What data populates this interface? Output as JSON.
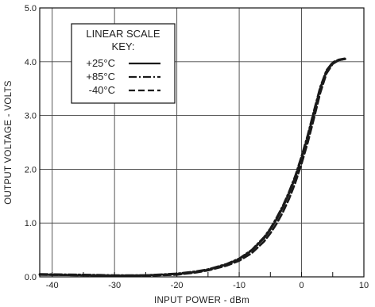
{
  "chart_data": {
    "type": "line",
    "xlabel": "INPUT POWER - dBm",
    "ylabel": "OUTPUT VOLTAGE - VOLTS",
    "xlim": [
      -42,
      10
    ],
    "ylim": [
      0,
      5
    ],
    "xticks": [
      -40,
      -30,
      -20,
      -10,
      0,
      10
    ],
    "xtick_labels": [
      "-40",
      "-30",
      "-20",
      "-10",
      "0",
      "10"
    ],
    "yticks": [
      0,
      1,
      2,
      3,
      4,
      5
    ],
    "ytick_labels": [
      "0.0",
      "1.0",
      "2.0",
      "3.0",
      "4.0",
      "5.0"
    ],
    "grid": true,
    "legend": {
      "title_line1": "LINEAR SCALE",
      "title_line2": "KEY:",
      "placement": "top-left"
    },
    "series": [
      {
        "name": "+25°C",
        "style": "solid",
        "x": [
          -42,
          -35,
          -30,
          -25,
          -20,
          -17,
          -15,
          -12,
          -10,
          -8,
          -6,
          -5,
          -4,
          -3,
          -2,
          -1,
          0,
          1,
          2,
          3,
          4,
          5,
          6,
          7
        ],
        "y": [
          0.04,
          0.03,
          0.02,
          0.03,
          0.05,
          0.09,
          0.13,
          0.23,
          0.33,
          0.49,
          0.72,
          0.88,
          1.07,
          1.29,
          1.55,
          1.85,
          2.2,
          2.6,
          3.05,
          3.5,
          3.82,
          3.98,
          4.03,
          4.05
        ]
      },
      {
        "name": "+85°C",
        "style": "dash-dot",
        "x": [
          -42,
          -35,
          -30,
          -25,
          -20,
          -17,
          -15,
          -12,
          -10,
          -8,
          -6,
          -5,
          -4,
          -3,
          -2,
          -1,
          0,
          1,
          2,
          3,
          4,
          5,
          6,
          7
        ],
        "y": [
          0.05,
          0.04,
          0.03,
          0.03,
          0.06,
          0.1,
          0.14,
          0.24,
          0.34,
          0.5,
          0.74,
          0.9,
          1.1,
          1.32,
          1.58,
          1.88,
          2.24,
          2.64,
          3.09,
          3.53,
          3.84,
          3.99,
          4.04,
          4.06
        ]
      },
      {
        "name": "-40°C",
        "style": "dashed",
        "x": [
          -42,
          -35,
          -30,
          -25,
          -20,
          -17,
          -15,
          -12,
          -10,
          -8,
          -6,
          -5,
          -4,
          -3,
          -2,
          -1,
          0,
          1,
          2,
          3,
          4,
          5,
          6,
          7
        ],
        "y": [
          0.04,
          0.03,
          0.02,
          0.02,
          0.04,
          0.08,
          0.12,
          0.21,
          0.3,
          0.44,
          0.66,
          0.81,
          0.99,
          1.2,
          1.45,
          1.75,
          2.1,
          2.5,
          2.95,
          3.42,
          3.78,
          3.96,
          4.03,
          4.05
        ]
      }
    ]
  }
}
